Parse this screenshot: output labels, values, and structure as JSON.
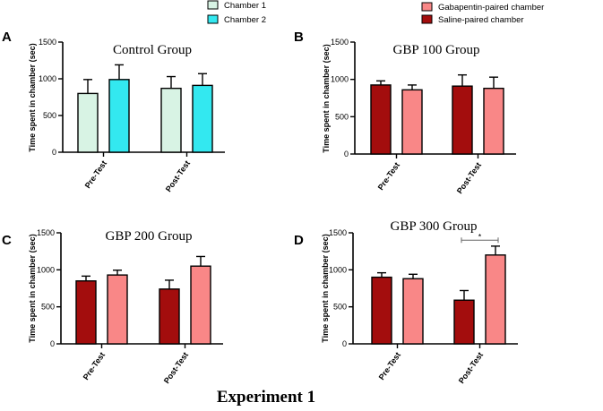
{
  "caption": "Experiment 1",
  "legends": [
    {
      "entries": [
        {
          "label": "Chamber 1",
          "color": "#d8f3e4"
        },
        {
          "label": "Chamber 2",
          "color": "#33e8f0"
        }
      ]
    },
    {
      "entries": [
        {
          "label": "Gabapentin-paired chamber",
          "color": "#f98787"
        },
        {
          "label": "Saline-paired chamber",
          "color": "#a30d0d"
        }
      ]
    }
  ],
  "chart_data": [
    {
      "panel": "A",
      "type": "bar",
      "title": "Control Group",
      "ylabel": "Time spent in chamber (sec)",
      "xlabel": "",
      "ylim": [
        0,
        1500
      ],
      "yticks": [
        0,
        500,
        1000,
        1500
      ],
      "categories": [
        "Pre-Test",
        "Post-Test"
      ],
      "series": [
        {
          "name": "Chamber 1",
          "color": "#d8f3e4",
          "values": [
            800,
            870
          ],
          "errors": [
            190,
            160
          ]
        },
        {
          "name": "Chamber 2",
          "color": "#33e8f0",
          "values": [
            990,
            910
          ],
          "errors": [
            200,
            160
          ]
        }
      ]
    },
    {
      "panel": "B",
      "type": "bar",
      "title": "GBP 100 Group",
      "ylabel": "Time spent in chamber (sec)",
      "xlabel": "",
      "ylim": [
        0,
        1500
      ],
      "yticks": [
        0,
        500,
        1000,
        1500
      ],
      "categories": [
        "Pre-Test",
        "Post-Test"
      ],
      "series": [
        {
          "name": "Saline-paired chamber",
          "color": "#a30d0d",
          "values": [
            925,
            910
          ],
          "errors": [
            55,
            150
          ]
        },
        {
          "name": "Gabapentin-paired chamber",
          "color": "#f98787",
          "values": [
            860,
            880
          ],
          "errors": [
            65,
            150
          ]
        }
      ]
    },
    {
      "panel": "C",
      "type": "bar",
      "title": "GBP 200 Group",
      "ylabel": "Time spent in chamber (sec)",
      "xlabel": "",
      "ylim": [
        0,
        1500
      ],
      "yticks": [
        0,
        500,
        1000,
        1500
      ],
      "categories": [
        "Pre-Test",
        "Post-Test"
      ],
      "series": [
        {
          "name": "Saline-paired chamber",
          "color": "#a30d0d",
          "values": [
            850,
            740
          ],
          "errors": [
            65,
            120
          ]
        },
        {
          "name": "Gabapentin-paired chamber",
          "color": "#f98787",
          "values": [
            930,
            1050
          ],
          "errors": [
            65,
            130
          ]
        }
      ]
    },
    {
      "panel": "D",
      "type": "bar",
      "title": "GBP 300 Group",
      "ylabel": "Time spent in chamber (sec)",
      "xlabel": "",
      "ylim": [
        0,
        1500
      ],
      "yticks": [
        0,
        500,
        1000,
        1500
      ],
      "categories": [
        "Pre-Test",
        "Post-Test"
      ],
      "series": [
        {
          "name": "Saline-paired chamber",
          "color": "#a30d0d",
          "values": [
            900,
            590
          ],
          "errors": [
            60,
            130
          ]
        },
        {
          "name": "Gabapentin-paired chamber",
          "color": "#f98787",
          "values": [
            880,
            1200
          ],
          "errors": [
            60,
            120
          ]
        }
      ],
      "annotation": "*"
    }
  ]
}
